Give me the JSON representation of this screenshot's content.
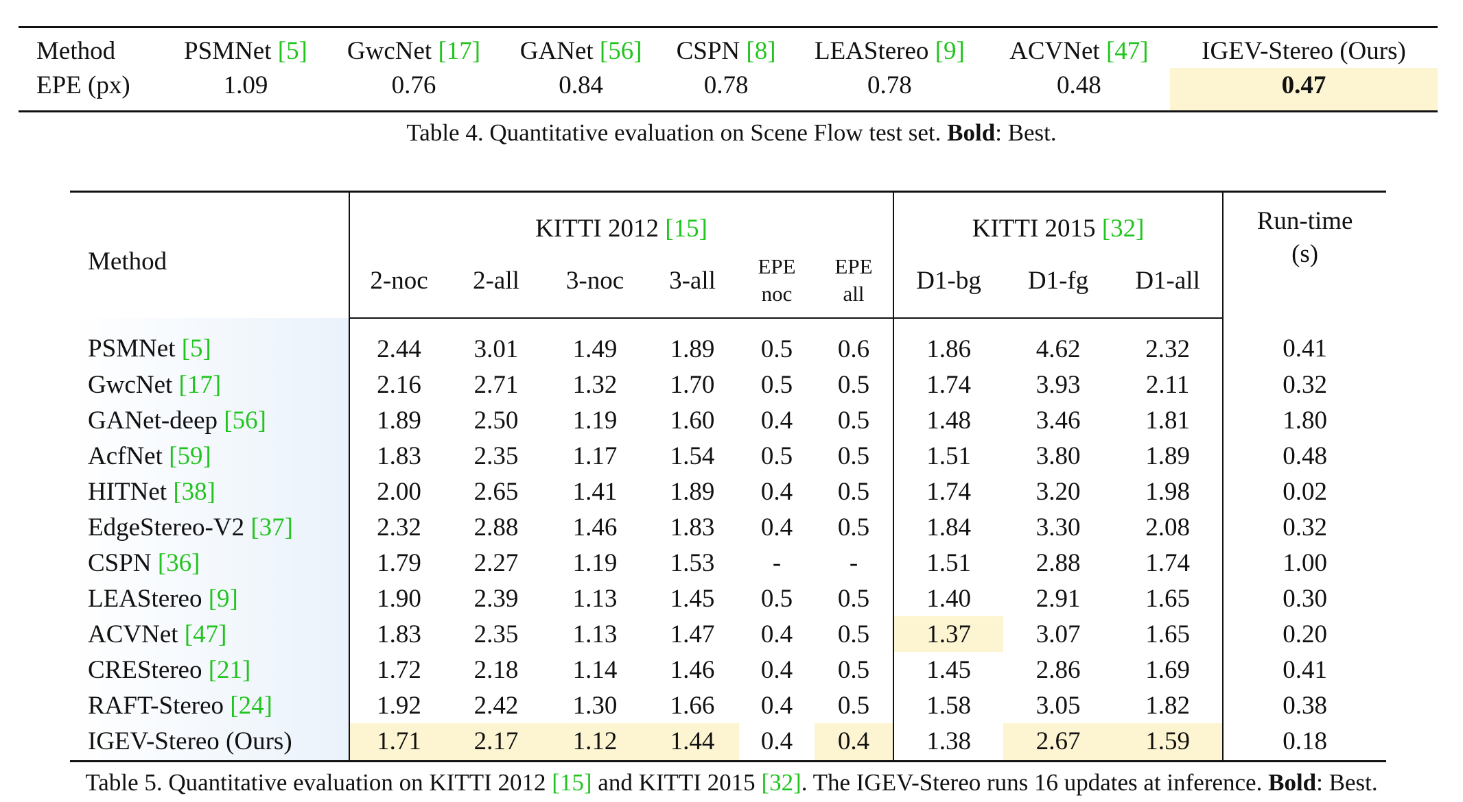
{
  "table4": {
    "headers": [
      {
        "text": "Method",
        "cite": ""
      },
      {
        "text": "PSMNet ",
        "cite": "[5]"
      },
      {
        "text": "GwcNet ",
        "cite": "[17]"
      },
      {
        "text": "GANet ",
        "cite": "[56]"
      },
      {
        "text": "CSPN ",
        "cite": "[8]"
      },
      {
        "text": "LEAStereo ",
        "cite": "[9]"
      },
      {
        "text": "ACVNet ",
        "cite": "[47]"
      },
      {
        "text": "IGEV-Stereo (Ours)",
        "cite": ""
      }
    ],
    "row_label": "EPE (px)",
    "values": [
      "1.09",
      "0.76",
      "0.84",
      "0.78",
      "0.78",
      "0.48",
      "0.47"
    ],
    "caption": {
      "prefix": "Table 4. Quantitative evaluation on Scene Flow test set. ",
      "bold": "Bold",
      "suffix": ": Best."
    }
  },
  "table5": {
    "method_header": "Method",
    "group_kitti2012": {
      "text": "KITTI 2012 ",
      "cite": "[15]"
    },
    "group_kitti2015": {
      "text": "KITTI 2015 ",
      "cite": "[32]"
    },
    "runtime_header_line1": "Run-time",
    "runtime_header_line2": "(s)",
    "subheaders": [
      {
        "l1": "2-noc",
        "l2": ""
      },
      {
        "l1": "2-all",
        "l2": ""
      },
      {
        "l1": "3-noc",
        "l2": ""
      },
      {
        "l1": "3-all",
        "l2": ""
      },
      {
        "l1": "EPE",
        "l2": "noc"
      },
      {
        "l1": "EPE",
        "l2": "all"
      },
      {
        "l1": "D1-bg",
        "l2": ""
      },
      {
        "l1": "D1-fg",
        "l2": ""
      },
      {
        "l1": "D1-all",
        "l2": ""
      }
    ],
    "rows": [
      {
        "name": "PSMNet ",
        "cite": "[5]",
        "vals": [
          "2.44",
          "3.01",
          "1.49",
          "1.89",
          "0.5",
          "0.6",
          "1.86",
          "4.62",
          "2.32",
          "0.41"
        ]
      },
      {
        "name": "GwcNet ",
        "cite": "[17]",
        "vals": [
          "2.16",
          "2.71",
          "1.32",
          "1.70",
          "0.5",
          "0.5",
          "1.74",
          "3.93",
          "2.11",
          "0.32"
        ]
      },
      {
        "name": "GANet-deep ",
        "cite": "[56]",
        "vals": [
          "1.89",
          "2.50",
          "1.19",
          "1.60",
          "0.4",
          "0.5",
          "1.48",
          "3.46",
          "1.81",
          "1.80"
        ]
      },
      {
        "name": "AcfNet ",
        "cite": "[59]",
        "vals": [
          "1.83",
          "2.35",
          "1.17",
          "1.54",
          "0.5",
          "0.5",
          "1.51",
          "3.80",
          "1.89",
          "0.48"
        ]
      },
      {
        "name": "HITNet ",
        "cite": "[38]",
        "vals": [
          "2.00",
          "2.65",
          "1.41",
          "1.89",
          "0.4",
          "0.5",
          "1.74",
          "3.20",
          "1.98",
          "0.02"
        ]
      },
      {
        "name": "EdgeStereo-V2 ",
        "cite": "[37]",
        "vals": [
          "2.32",
          "2.88",
          "1.46",
          "1.83",
          "0.4",
          "0.5",
          "1.84",
          "3.30",
          "2.08",
          "0.32"
        ]
      },
      {
        "name": "CSPN ",
        "cite": "[36]",
        "vals": [
          "1.79",
          "2.27",
          "1.19",
          "1.53",
          "-",
          "-",
          "1.51",
          "2.88",
          "1.74",
          "1.00"
        ]
      },
      {
        "name": "LEAStereo ",
        "cite": "[9]",
        "vals": [
          "1.90",
          "2.39",
          "1.13",
          "1.45",
          "0.5",
          "0.5",
          "1.40",
          "2.91",
          "1.65",
          "0.30"
        ]
      },
      {
        "name": "ACVNet ",
        "cite": "[47]",
        "vals": [
          "1.83",
          "2.35",
          "1.13",
          "1.47",
          "0.4",
          "0.5",
          "1.37",
          "3.07",
          "1.65",
          "0.20"
        ]
      },
      {
        "name": "CREStereo ",
        "cite": "[21]",
        "vals": [
          "1.72",
          "2.18",
          "1.14",
          "1.46",
          "0.4",
          "0.5",
          "1.45",
          "2.86",
          "1.69",
          "0.41"
        ]
      },
      {
        "name": "RAFT-Stereo ",
        "cite": "[24]",
        "vals": [
          "1.92",
          "2.42",
          "1.30",
          "1.66",
          "0.4",
          "0.5",
          "1.58",
          "3.05",
          "1.82",
          "0.38"
        ]
      },
      {
        "name": "IGEV-Stereo (Ours)",
        "cite": "",
        "vals": [
          "1.71",
          "2.17",
          "1.12",
          "1.44",
          "0.4",
          "0.4",
          "1.38",
          "2.67",
          "1.59",
          "0.18"
        ]
      }
    ],
    "caption": {
      "p1": "Table 5. Quantitative evaluation on KITTI 2012 ",
      "c1": "[15]",
      "p2": " and KITTI 2015 ",
      "c2": "[32]",
      "p3": ". The IGEV-Stereo runs 16 updates at inference. ",
      "bold": "Bold",
      "p4": ": Best."
    }
  }
}
